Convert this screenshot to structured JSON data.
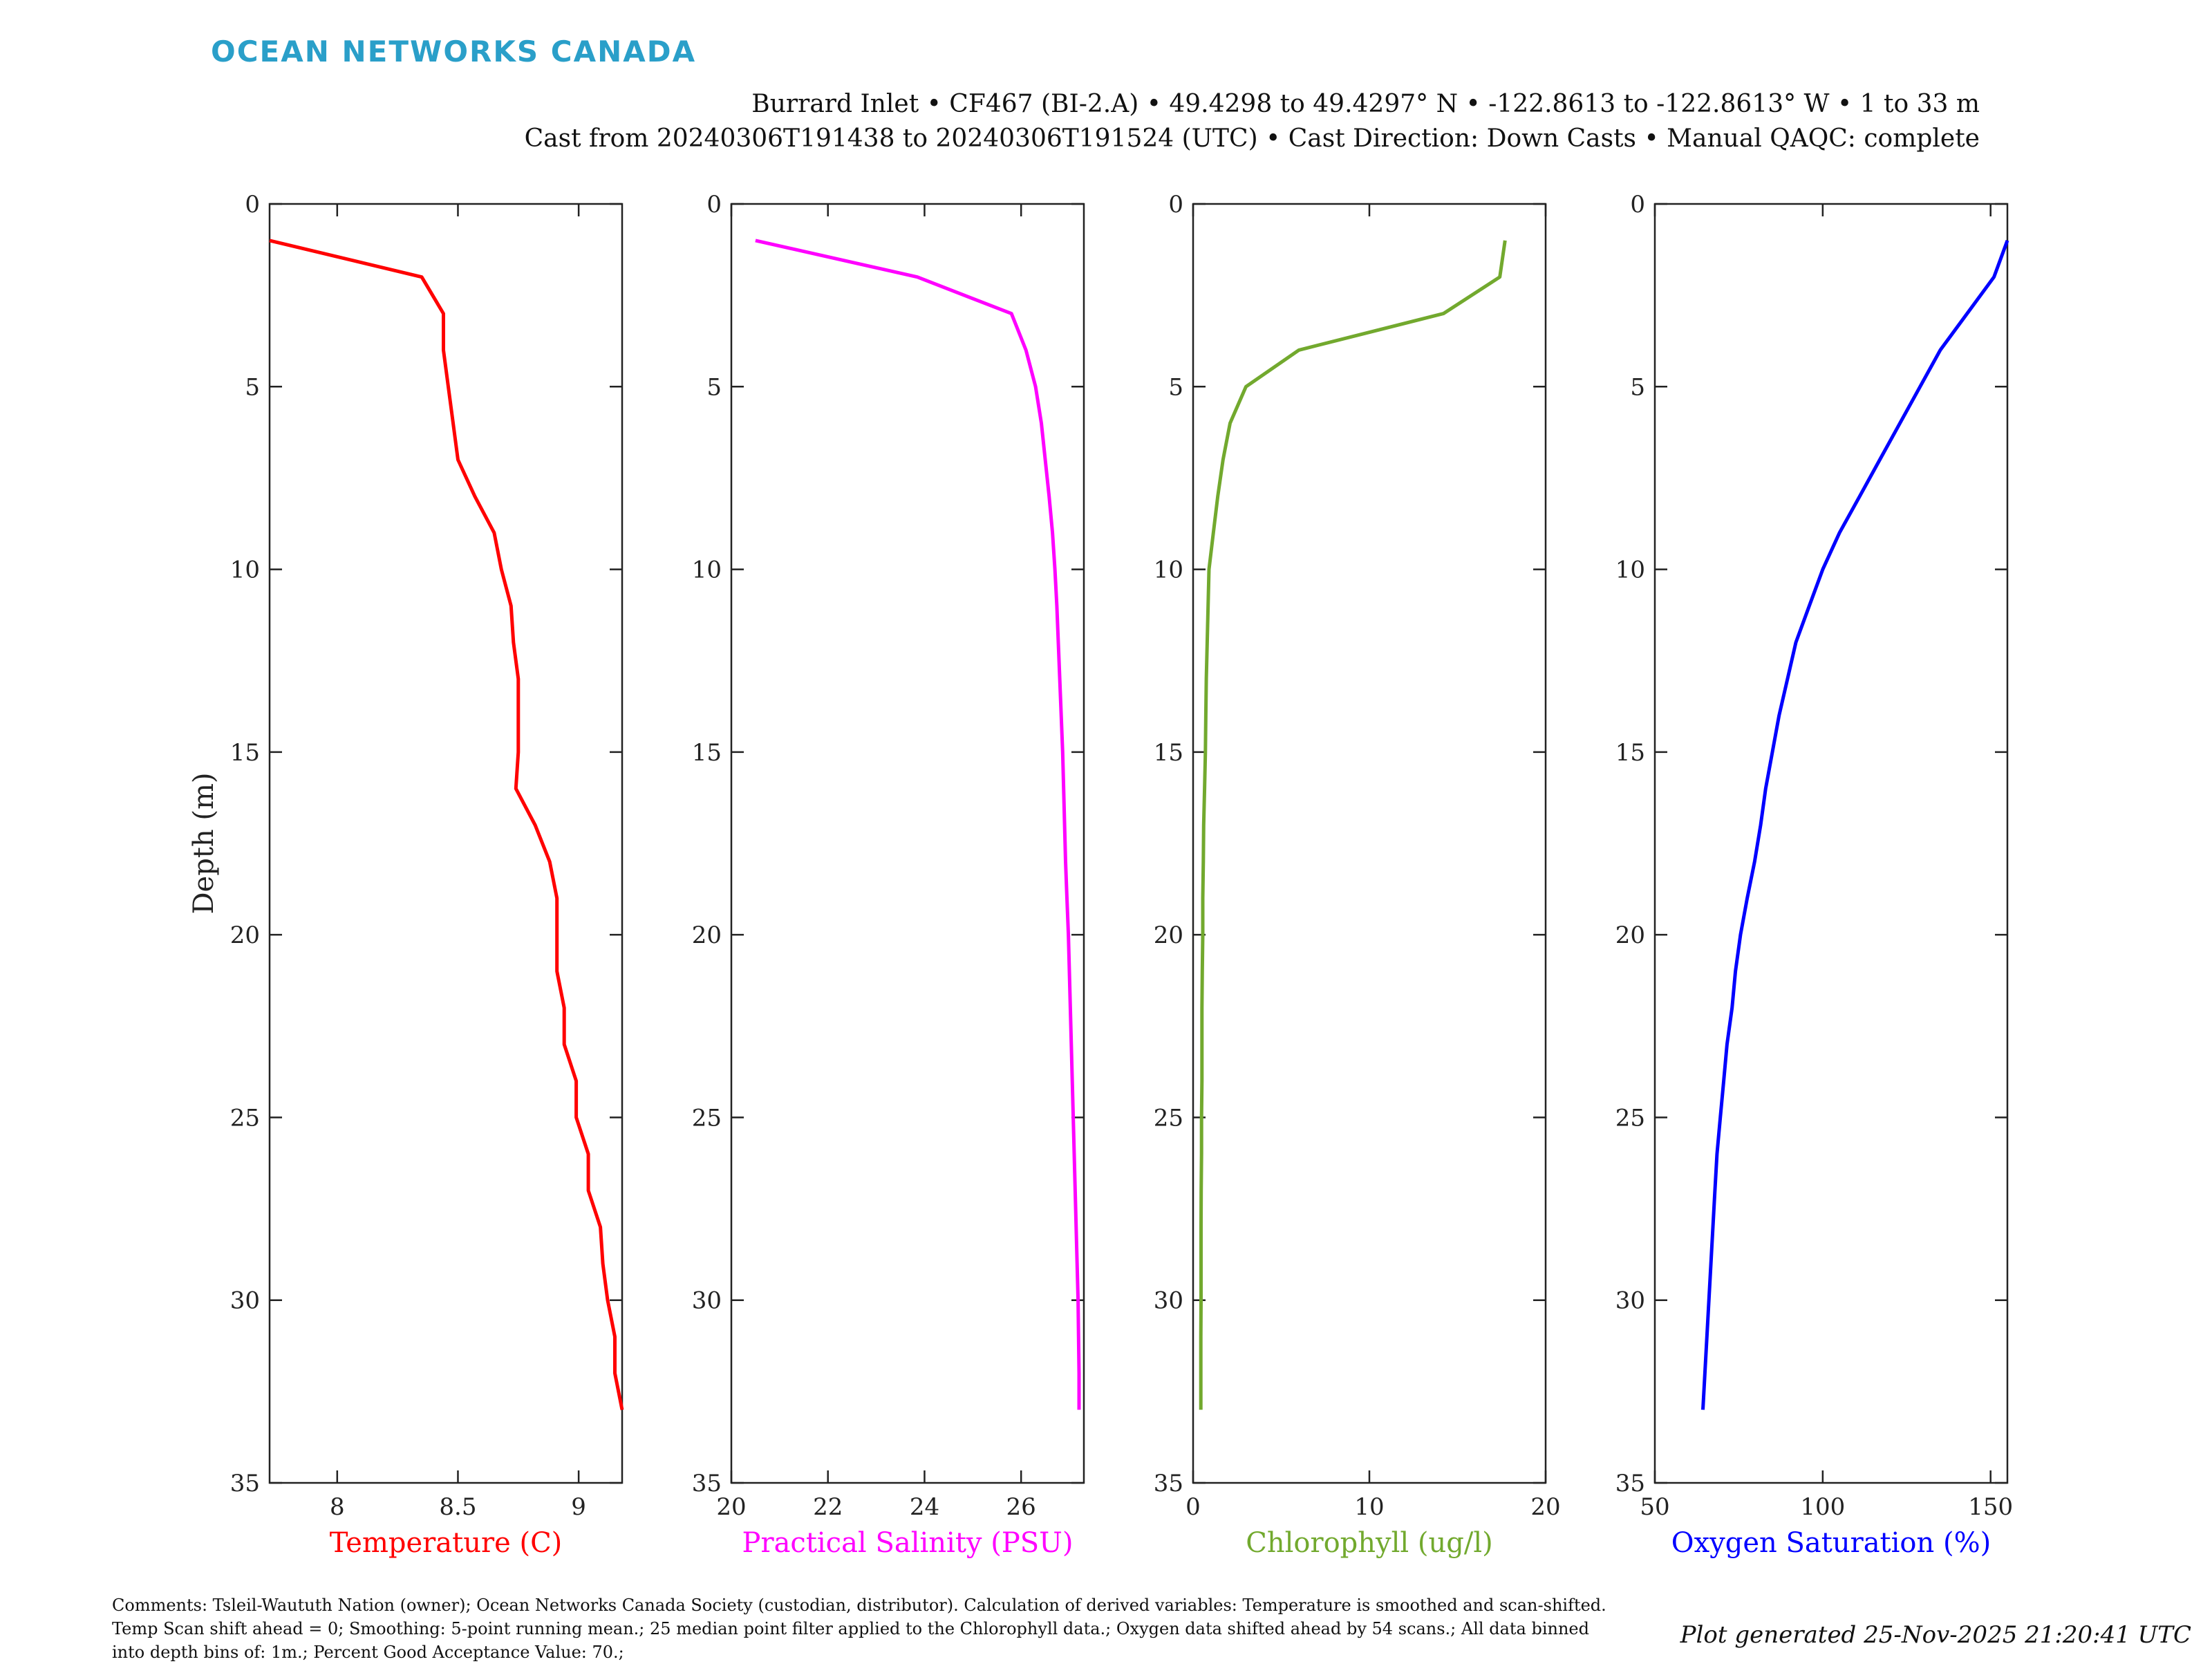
{
  "header": {
    "logo_text": "OCEAN NETWORKS CANADA",
    "title_line1": "Burrard Inlet • CF467 (BI-2.A) • 49.4298 to 49.4297° N • -122.8613 to -122.8613° W • 1 to 33 m",
    "title_line2": "Cast from 20240306T191438 to 20240306T191524 (UTC) • Cast Direction: Down Casts • Manual QAQC: complete"
  },
  "footer": {
    "comments": "Comments: Tsleil-Waututh Nation (owner); Ocean Networks Canada Society (custodian, distributor). Calculation of derived variables: Temperature is smoothed and scan-shifted. Temp Scan shift ahead = 0; Smoothing: 5-point running mean.; 25 median point filter applied to the Chlorophyll data.; Oxygen data shifted ahead by 54 scans.; All data binned into depth bins of: 1m.; Percent Good Acceptance Value: 70.;",
    "generated": "Plot generated 25-Nov-2025 21:20:41 UTC"
  },
  "chart_data": [
    {
      "type": "line",
      "ylabel": "Depth (m)",
      "xlabel": "Temperature (C)",
      "color": "#ff0000",
      "xlim": [
        7.72,
        9.18
      ],
      "ylim": [
        0,
        35
      ],
      "xticks": [
        8,
        8.5,
        9
      ],
      "xticklabels": [
        "8",
        "8.5",
        "9"
      ],
      "yticks": [
        0,
        5,
        10,
        15,
        20,
        25,
        30,
        35
      ],
      "yticklabels": [
        "0",
        "5",
        "10",
        "15",
        "20",
        "25",
        "30",
        "35"
      ],
      "y_reversed": true,
      "depth": [
        1,
        2,
        3,
        4,
        5,
        6,
        7,
        8,
        9,
        10,
        11,
        12,
        13,
        14,
        15,
        16,
        17,
        18,
        19,
        20,
        21,
        22,
        23,
        24,
        25,
        26,
        27,
        28,
        29,
        30,
        31,
        32,
        33
      ],
      "values": [
        7.72,
        8.35,
        8.44,
        8.44,
        8.46,
        8.48,
        8.5,
        8.57,
        8.65,
        8.68,
        8.72,
        8.73,
        8.75,
        8.75,
        8.75,
        8.74,
        8.82,
        8.88,
        8.91,
        8.91,
        8.91,
        8.94,
        8.94,
        8.99,
        8.99,
        9.04,
        9.04,
        9.09,
        9.1,
        9.12,
        9.15,
        9.15,
        9.18
      ]
    },
    {
      "type": "line",
      "ylabel": "",
      "xlabel": "Practical Salinity (PSU)",
      "color": "#ff00ff",
      "xlim": [
        20,
        27.3
      ],
      "ylim": [
        0,
        35
      ],
      "xticks": [
        20,
        22,
        24,
        26
      ],
      "xticklabels": [
        "20",
        "22",
        "24",
        "26"
      ],
      "yticks": [
        0,
        5,
        10,
        15,
        20,
        25,
        30,
        35
      ],
      "yticklabels": [
        "0",
        "5",
        "10",
        "15",
        "20",
        "25",
        "30",
        "35"
      ],
      "y_reversed": true,
      "depth": [
        1,
        2,
        3,
        4,
        5,
        6,
        7,
        8,
        9,
        10,
        11,
        12,
        13,
        14,
        15,
        16,
        17,
        18,
        19,
        20,
        21,
        22,
        23,
        24,
        25,
        26,
        27,
        28,
        29,
        30,
        31,
        32,
        33
      ],
      "values": [
        20.5,
        23.85,
        25.8,
        26.1,
        26.3,
        26.42,
        26.5,
        26.58,
        26.65,
        26.7,
        26.74,
        26.77,
        26.8,
        26.83,
        26.86,
        26.88,
        26.9,
        26.92,
        26.95,
        26.98,
        27.0,
        27.02,
        27.04,
        27.06,
        27.08,
        27.1,
        27.12,
        27.14,
        27.16,
        27.18,
        27.19,
        27.2,
        27.2
      ]
    },
    {
      "type": "line",
      "ylabel": "",
      "xlabel": "Chlorophyll (ug/l)",
      "color": "#72a92e",
      "xlim": [
        0,
        20
      ],
      "ylim": [
        0,
        35
      ],
      "xticks": [
        0,
        10,
        20
      ],
      "xticklabels": [
        "0",
        "10",
        "20"
      ],
      "yticks": [
        0,
        5,
        10,
        15,
        20,
        25,
        30,
        35
      ],
      "yticklabels": [
        "0",
        "5",
        "10",
        "15",
        "20",
        "25",
        "30",
        "35"
      ],
      "y_reversed": true,
      "depth": [
        1,
        2,
        3,
        4,
        5,
        6,
        7,
        8,
        9,
        10,
        11,
        12,
        13,
        14,
        15,
        16,
        17,
        18,
        19,
        20,
        21,
        22,
        23,
        24,
        25,
        26,
        27,
        28,
        29,
        30,
        31,
        32,
        33
      ],
      "values": [
        17.7,
        17.4,
        14.2,
        6.0,
        3.0,
        2.1,
        1.7,
        1.4,
        1.15,
        0.9,
        0.85,
        0.8,
        0.75,
        0.72,
        0.7,
        0.65,
        0.6,
        0.58,
        0.55,
        0.55,
        0.52,
        0.5,
        0.5,
        0.5,
        0.48,
        0.48,
        0.46,
        0.45,
        0.45,
        0.45,
        0.44,
        0.44,
        0.44
      ]
    },
    {
      "type": "line",
      "ylabel": "",
      "xlabel": "Oxygen Saturation (%)",
      "color": "#0000ff",
      "xlim": [
        50,
        155
      ],
      "ylim": [
        0,
        35
      ],
      "xticks": [
        50,
        100,
        150
      ],
      "xticklabels": [
        "50",
        "100",
        "150"
      ],
      "yticks": [
        0,
        5,
        10,
        15,
        20,
        25,
        30,
        35
      ],
      "yticklabels": [
        "0",
        "5",
        "10",
        "15",
        "20",
        "25",
        "30",
        "35"
      ],
      "y_reversed": true,
      "depth": [
        1,
        2,
        3,
        4,
        5,
        6,
        7,
        8,
        9,
        10,
        11,
        12,
        13,
        14,
        15,
        16,
        17,
        18,
        19,
        20,
        21,
        22,
        23,
        24,
        25,
        26,
        27,
        28,
        29,
        30,
        31,
        32,
        33
      ],
      "values": [
        155,
        151,
        143,
        135,
        129,
        123,
        117,
        111,
        105,
        100,
        96,
        92,
        89.5,
        87,
        85,
        83,
        81.5,
        79.7,
        77.5,
        75.5,
        74,
        73,
        71.5,
        70.5,
        69.5,
        68.5,
        67.9,
        67.3,
        66.7,
        66.1,
        65.5,
        64.9,
        64.3
      ]
    }
  ]
}
